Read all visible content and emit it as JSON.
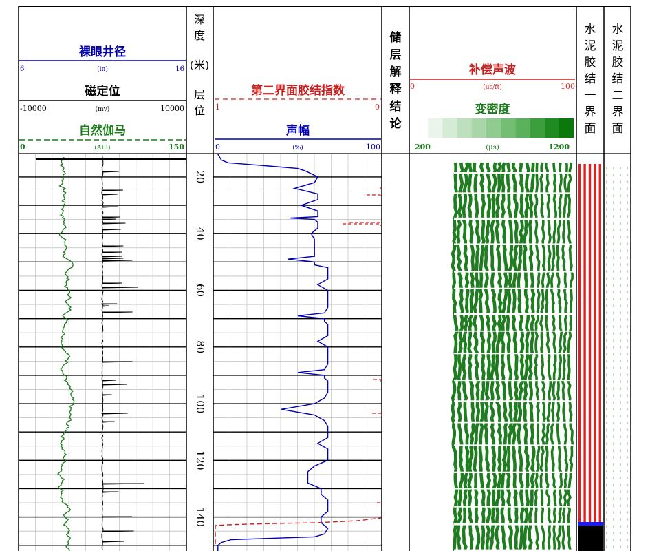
{
  "colors": {
    "blue": "#0000b4",
    "black": "#000000",
    "green": "#1a7a1a",
    "red": "#cc2020",
    "vdl_green": "#1e7d1e",
    "bond_red": "#e02020",
    "bond_blue": "#1a1aff"
  },
  "header": {
    "caliper": {
      "title": "裸眼井径",
      "left": "6",
      "unit": "(in)",
      "right": "16"
    },
    "ccl": {
      "title": "磁定位",
      "left": "-10000",
      "unit": "(mv)",
      "right": "10000"
    },
    "gr": {
      "title": "自然伽马",
      "left": "0",
      "unit": "(API)",
      "right": "150"
    },
    "depth": {
      "line1": [
        "深",
        "度"
      ],
      "unit": "(米)",
      "line2": [
        "层",
        "位"
      ]
    },
    "bond2": {
      "title": "第二界面胶结指数",
      "left": "1",
      "right": "0"
    },
    "amp": {
      "title": "声幅",
      "left": "0",
      "unit": "(%)",
      "right": "100"
    },
    "interp": {
      "chars": [
        "储",
        "层",
        "解",
        "释",
        "结",
        "论"
      ]
    },
    "ac": {
      "title": "补偿声波",
      "left": "0",
      "unit": "(us/ft)",
      "right": "100"
    },
    "vdl": {
      "title": "变密度",
      "left": "200",
      "unit": "(μs)",
      "right": "1200",
      "swatches": [
        "#eaf4ea",
        "#d4ebd4",
        "#bfe0bf",
        "#a8d6a8",
        "#90cb90",
        "#74bd74",
        "#5bb05b",
        "#3d9e3d",
        "#1f8a1f",
        "#0a780a"
      ]
    },
    "bond1_track": {
      "chars": [
        "水",
        "泥",
        "胶",
        "结",
        "一",
        "界",
        "面"
      ]
    },
    "bond2_track": {
      "chars": [
        "水",
        "泥",
        "胶",
        "结",
        "二",
        "界",
        "面"
      ]
    }
  },
  "chart_data": {
    "type": "line",
    "depth_ticks": [
      20,
      40,
      60,
      80,
      100,
      120,
      140
    ],
    "depth_range": [
      12,
      152
    ],
    "series": [
      {
        "name": "声幅",
        "depth": [
          12,
          13,
          14,
          15,
          16,
          17,
          18,
          20,
          22,
          24,
          26,
          28,
          30,
          32,
          34,
          34.5,
          35,
          36,
          38,
          40,
          42,
          44,
          46,
          48,
          49,
          50,
          51,
          52,
          54,
          56,
          58,
          60,
          62,
          64,
          66,
          68,
          69,
          70,
          71,
          72,
          74,
          76,
          78,
          80,
          82,
          84,
          86,
          88,
          89,
          90,
          91,
          92,
          94,
          96,
          98,
          100,
          102,
          104,
          106,
          108,
          110,
          112,
          114,
          116,
          118,
          120,
          122,
          124,
          126,
          128,
          130,
          132,
          134,
          136,
          138,
          140,
          142,
          144,
          146,
          147,
          148,
          149,
          150,
          151,
          152
        ],
        "values": [
          2,
          3,
          4,
          8,
          30,
          50,
          55,
          62,
          60,
          48,
          62,
          62,
          52,
          62,
          62,
          45,
          60,
          62,
          62,
          58,
          60,
          60,
          60,
          60,
          44,
          60,
          60,
          68,
          68,
          68,
          62,
          68,
          68,
          68,
          68,
          66,
          50,
          66,
          66,
          68,
          68,
          68,
          62,
          68,
          68,
          68,
          68,
          66,
          50,
          66,
          66,
          68,
          68,
          68,
          66,
          60,
          40,
          60,
          66,
          68,
          68,
          68,
          62,
          68,
          68,
          68,
          60,
          56,
          56,
          56,
          64,
          64,
          68,
          68,
          68,
          64,
          64,
          68,
          66,
          60,
          10,
          4,
          2,
          2,
          2
        ]
      }
    ]
  }
}
